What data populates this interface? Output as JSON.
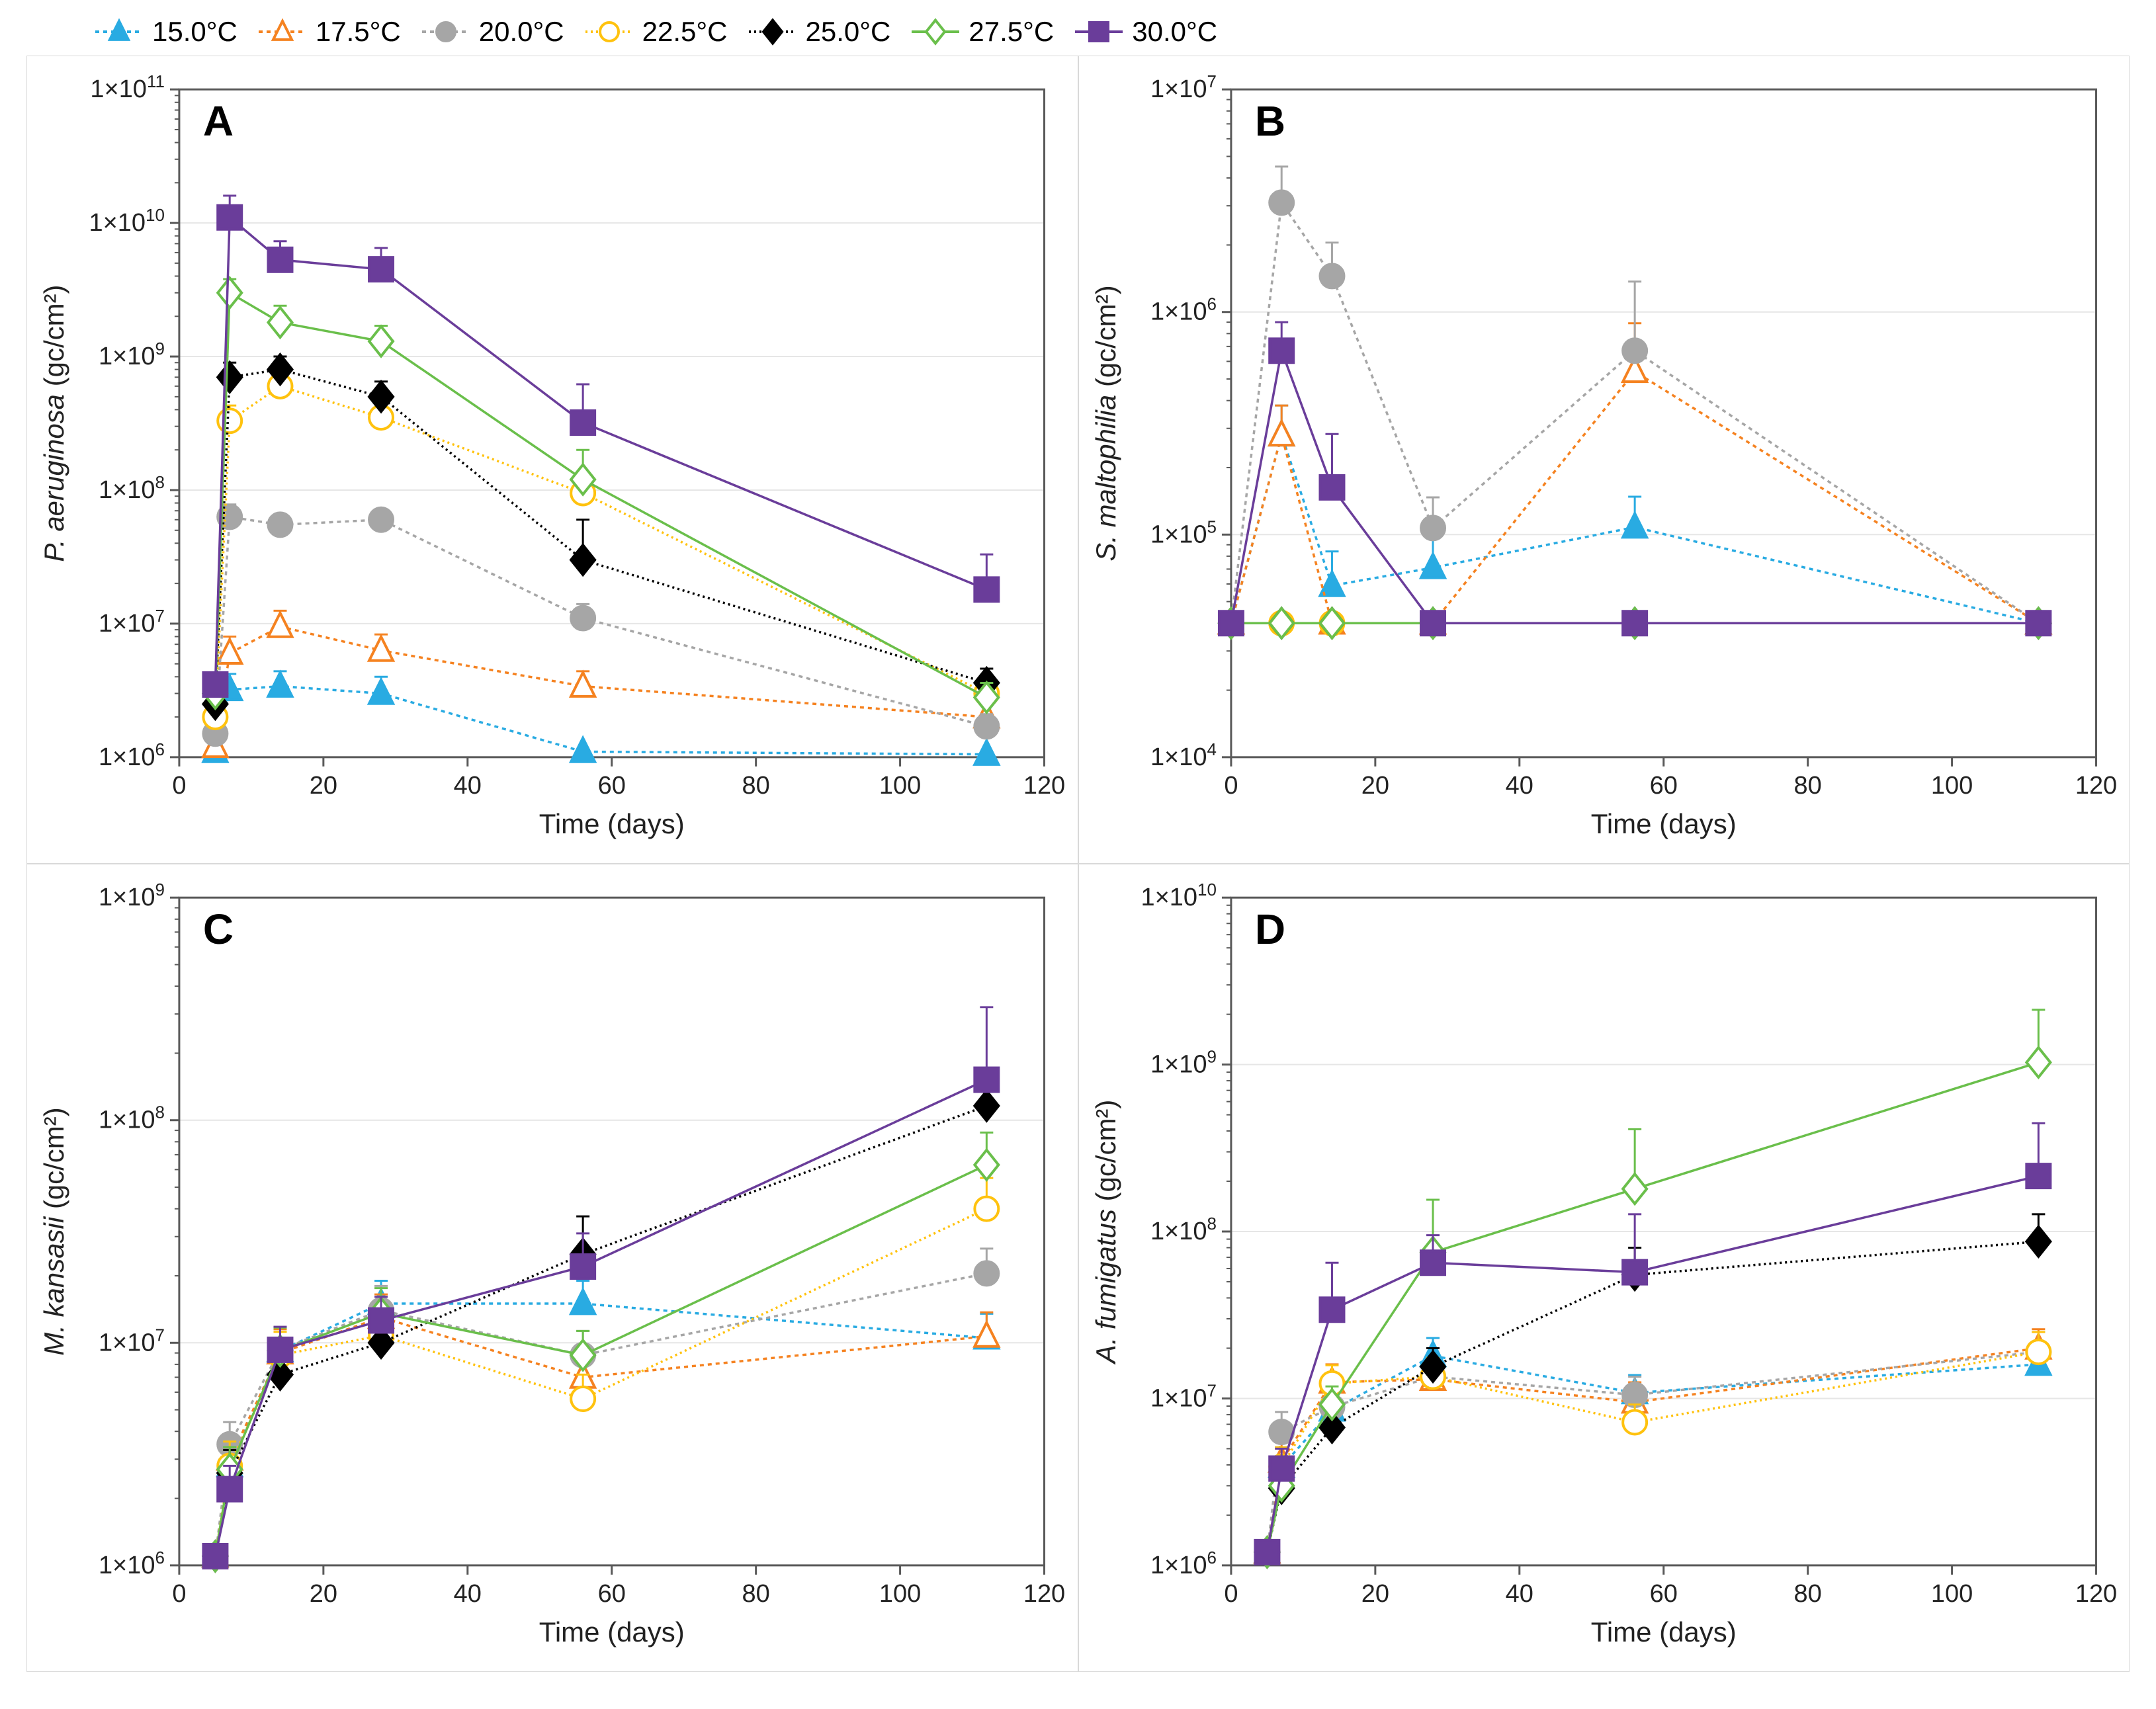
{
  "colors": {
    "axis": "#595959",
    "grid": "#e6e6e6",
    "frame": "#595959",
    "text": "#222222"
  },
  "series_style": {
    "s15": {
      "label": "15.0°C",
      "color": "#29abe2",
      "stroke": "#29abe2",
      "marker": "triangle",
      "fill": "#29abe2",
      "dash": "6 6"
    },
    "s175": {
      "label": "17.5°C",
      "color": "#f58220",
      "stroke": "#f58220",
      "marker": "triangle",
      "fill": "#ffffff",
      "dash": "6 6"
    },
    "s20": {
      "label": "20.0°C",
      "color": "#a6a6a6",
      "stroke": "#a6a6a6",
      "marker": "circle",
      "fill": "#a6a6a6",
      "dash": "6 6"
    },
    "s225": {
      "label": "22.5°C",
      "color": "#ffc20e",
      "stroke": "#ffc20e",
      "marker": "circle",
      "fill": "#ffffff",
      "dash": "3 5"
    },
    "s25": {
      "label": "25.0°C",
      "color": "#000000",
      "stroke": "#000000",
      "marker": "diamond",
      "fill": "#000000",
      "dash": "3 5"
    },
    "s275": {
      "label": "27.5°C",
      "color": "#6abf4b",
      "stroke": "#6abf4b",
      "marker": "diamond",
      "fill": "#ffffff",
      "dash": ""
    },
    "s30": {
      "label": "30.0°C",
      "color": "#6a3d9a",
      "stroke": "#6a3d9a",
      "marker": "square",
      "fill": "#6a3d9a",
      "dash": ""
    }
  },
  "legend_order": [
    "s15",
    "s175",
    "s20",
    "s225",
    "s25",
    "s275",
    "s30"
  ],
  "panels": {
    "A": {
      "letter": "A",
      "ylabel_prefix": "P. aeruginosa",
      "ylabel_suffix": " (gc/cm²)",
      "xlabel": "Time (days)",
      "xlim": [
        0,
        120
      ],
      "xticks": [
        0,
        20,
        40,
        60,
        80,
        100,
        120
      ],
      "ylog": true,
      "ylim": [
        1000000.0,
        100000000000.0
      ],
      "yticks": [
        1000000.0,
        10000000.0,
        100000000.0,
        1000000000.0,
        10000000000.0,
        100000000000.0
      ],
      "series": {
        "s15": {
          "x": [
            5,
            7,
            14,
            28,
            56,
            112
          ],
          "y": [
            1100000.0,
            3200000.0,
            3400000.0,
            3000000.0,
            1100000.0,
            1050000.0
          ],
          "err": [
            0,
            1000000.0,
            1000000.0,
            1000000.0,
            0,
            0
          ]
        },
        "s175": {
          "x": [
            5,
            7,
            14,
            28,
            56,
            112
          ],
          "y": [
            1200000.0,
            6000000.0,
            9500000.0,
            6300000.0,
            3400000.0,
            2000000.0
          ],
          "err": [
            0,
            2000000.0,
            3000000.0,
            2000000.0,
            1000000.0,
            500000.0
          ]
        },
        "s20": {
          "x": [
            5,
            7,
            14,
            28,
            56,
            112
          ],
          "y": [
            1500000.0,
            63000000.0,
            55000000.0,
            60000000.0,
            11000000.0,
            1700000.0
          ],
          "err": [
            0,
            15000000.0,
            10000000.0,
            10000000.0,
            3000000.0,
            400000.0
          ]
        },
        "s225": {
          "x": [
            5,
            7,
            14,
            28,
            56,
            112
          ],
          "y": [
            2000000.0,
            330000000.0,
            600000000.0,
            350000000.0,
            95000000.0,
            3000000.0
          ],
          "err": [
            0,
            100000000.0,
            150000000.0,
            100000000.0,
            30000000.0,
            800000.0
          ]
        },
        "s25": {
          "x": [
            5,
            7,
            14,
            28,
            56,
            112
          ],
          "y": [
            2500000.0,
            700000000.0,
            800000000.0,
            500000000.0,
            30000000.0,
            3600000.0
          ],
          "err": [
            0,
            200000000.0,
            200000000.0,
            150000000.0,
            30000000.0,
            1000000.0
          ]
        },
        "s275": {
          "x": [
            5,
            7,
            14,
            28,
            56,
            112
          ],
          "y": [
            3000000.0,
            3000000000.0,
            1800000000.0,
            1300000000.0,
            120000000.0,
            2800000.0
          ],
          "err": [
            0,
            800000000.0,
            600000000.0,
            400000000.0,
            80000000.0,
            800000.0
          ]
        },
        "s30": {
          "x": [
            5,
            7,
            14,
            28,
            56,
            112
          ],
          "y": [
            3500000.0,
            11000000000.0,
            5300000000.0,
            4500000000.0,
            320000000.0,
            18000000.0
          ],
          "err": [
            0,
            5000000000.0,
            2000000000.0,
            2000000000.0,
            300000000.0,
            15000000.0
          ]
        }
      }
    },
    "B": {
      "letter": "B",
      "ylabel_prefix": "S. maltophilia",
      "ylabel_suffix": " (gc/cm²)",
      "xlabel": "Time (days)",
      "xlim": [
        0,
        120
      ],
      "xticks": [
        0,
        20,
        40,
        60,
        80,
        100,
        120
      ],
      "ylog": true,
      "ylim": [
        10000.0,
        10000000.0
      ],
      "yticks": [
        10000.0,
        100000.0,
        1000000.0,
        10000000.0
      ],
      "series": {
        "s15": {
          "x": [
            0,
            7,
            14,
            28,
            56,
            112
          ],
          "y": [
            40000.0,
            280000.0,
            59000.0,
            71000.0,
            108000.0,
            40000.0
          ],
          "err": [
            0,
            100000.0,
            25000.0,
            25000.0,
            40000.0,
            0
          ]
        },
        "s175": {
          "x": [
            0,
            7,
            14,
            28,
            56,
            112
          ],
          "y": [
            40000.0,
            280000.0,
            40000.0,
            40000.0,
            540000.0,
            40000.0
          ],
          "err": [
            0,
            100000.0,
            0,
            0,
            350000.0,
            0
          ]
        },
        "s20": {
          "x": [
            0,
            7,
            14,
            28,
            56,
            112
          ],
          "y": [
            40000.0,
            3100000.0,
            1450000.0,
            107000.0,
            670000.0,
            40000.0
          ],
          "err": [
            0,
            1400000.0,
            600000.0,
            40000.0,
            700000.0,
            0
          ]
        },
        "s225": {
          "x": [
            0,
            7,
            14,
            28,
            56,
            112
          ],
          "y": [
            40000.0,
            40000.0,
            40000.0,
            40000.0,
            40000.0,
            40000.0
          ],
          "err": [
            0,
            0,
            0,
            0,
            0,
            0
          ]
        },
        "s25": {
          "x": [
            0,
            7,
            14,
            28,
            56,
            112
          ],
          "y": [
            40000.0,
            40000.0,
            40000.0,
            40000.0,
            40000.0,
            40000.0
          ],
          "err": [
            0,
            0,
            0,
            0,
            0,
            0
          ]
        },
        "s275": {
          "x": [
            0,
            7,
            14,
            28,
            56,
            112
          ],
          "y": [
            40000.0,
            40000.0,
            40000.0,
            40000.0,
            40000.0,
            40000.0
          ],
          "err": [
            0,
            0,
            0,
            0,
            0,
            0
          ]
        },
        "s30": {
          "x": [
            0,
            7,
            14,
            28,
            56,
            112
          ],
          "y": [
            40000.0,
            670000.0,
            163000.0,
            40000.0,
            40000.0,
            40000.0
          ],
          "err": [
            0,
            230000.0,
            120000.0,
            0,
            0,
            0
          ]
        }
      }
    },
    "C": {
      "letter": "C",
      "ylabel_prefix": "M. kansasii",
      "ylabel_suffix": " (gc/cm²)",
      "xlabel": "Time (days)",
      "xlim": [
        0,
        120
      ],
      "xticks": [
        0,
        20,
        40,
        60,
        80,
        100,
        120
      ],
      "ylog": true,
      "ylim": [
        1000000.0,
        1000000000.0
      ],
      "yticks": [
        1000000.0,
        10000000.0,
        100000000.0,
        1000000000.0
      ],
      "series": {
        "s15": {
          "x": [
            5,
            7,
            14,
            28,
            56,
            112
          ],
          "y": [
            1100000.0,
            2800000.0,
            9200000.0,
            15000000.0,
            15000000.0,
            10500000.0
          ],
          "err": [
            0,
            800000.0,
            2500000.0,
            4000000.0,
            4000000.0,
            3000000.0
          ]
        },
        "s175": {
          "x": [
            5,
            7,
            14,
            28,
            56,
            112
          ],
          "y": [
            1100000.0,
            3000000.0,
            9000000.0,
            13000000.0,
            7000000.0,
            10700000.0
          ],
          "err": [
            0,
            800000.0,
            2500000.0,
            3500000.0,
            2000000.0,
            3000000.0
          ]
        },
        "s20": {
          "x": [
            5,
            7,
            14,
            28,
            56,
            112
          ],
          "y": [
            1100000.0,
            3500000.0,
            9300000.0,
            14000000.0,
            8800000.0,
            20500000.0
          ],
          "err": [
            0,
            900000.0,
            2500000.0,
            4000000.0,
            2500000.0,
            6000000.0
          ]
        },
        "s225": {
          "x": [
            5,
            7,
            14,
            28,
            56,
            112
          ],
          "y": [
            1100000.0,
            2800000.0,
            8800000.0,
            10800000.0,
            5600000.0,
            40000000.0
          ],
          "err": [
            0,
            800000.0,
            2400000.0,
            3000000.0,
            1600000.0,
            15000000.0
          ]
        },
        "s25": {
          "x": [
            5,
            7,
            14,
            28,
            56,
            112
          ],
          "y": [
            1100000.0,
            2600000.0,
            7200000.0,
            10000000.0,
            25000000.0,
            116000000.0
          ],
          "err": [
            0,
            700000.0,
            2000000.0,
            3000000.0,
            12000000.0,
            55000000.0
          ]
        },
        "s275": {
          "x": [
            5,
            7,
            14,
            28,
            56,
            112
          ],
          "y": [
            1100000.0,
            2700000.0,
            9200000.0,
            13600000.0,
            8800000.0,
            63000000.0
          ],
          "err": [
            0,
            700000.0,
            2500000.0,
            4000000.0,
            2500000.0,
            25000000.0
          ]
        },
        "s30": {
          "x": [
            5,
            7,
            14,
            28,
            56,
            112
          ],
          "y": [
            1100000.0,
            2200000.0,
            9300000.0,
            12600000.0,
            22000000.0,
            152000000.0
          ],
          "err": [
            0,
            600000.0,
            2500000.0,
            3500000.0,
            9000000.0,
            170000000.0
          ]
        }
      }
    },
    "D": {
      "letter": "D",
      "ylabel_prefix": "A. fumigatus",
      "ylabel_suffix": " (gc/cm²)",
      "xlabel": "Time (days)",
      "xlim": [
        0,
        120
      ],
      "xticks": [
        0,
        20,
        40,
        60,
        80,
        100,
        120
      ],
      "ylog": true,
      "ylim": [
        1000000.0,
        10000000000.0
      ],
      "yticks": [
        1000000.0,
        10000000.0,
        100000000.0,
        1000000000.0,
        10000000000.0
      ],
      "series": {
        "s15": {
          "x": [
            5,
            7,
            14,
            28,
            56,
            112
          ],
          "y": [
            1200000.0,
            3900000.0,
            8500000.0,
            18000000.0,
            10800000.0,
            16000000.0
          ],
          "err": [
            0,
            1200000.0,
            2500000.0,
            5000000.0,
            3000000.0,
            5000000.0
          ]
        },
        "s175": {
          "x": [
            5,
            7,
            14,
            28,
            56,
            112
          ],
          "y": [
            1200000.0,
            4200000.0,
            12500000.0,
            13000000.0,
            9500000.0,
            20000000.0
          ],
          "err": [
            0,
            1300000.0,
            3500000.0,
            4000000.0,
            3000000.0,
            6000000.0
          ]
        },
        "s20": {
          "x": [
            5,
            7,
            14,
            28,
            56,
            112
          ],
          "y": [
            1200000.0,
            6300000.0,
            8900000.0,
            13500000.0,
            10500000.0,
            19000000.0
          ],
          "err": [
            0,
            2000000.0,
            2500000.0,
            4000000.0,
            3000000.0,
            6000000.0
          ]
        },
        "s225": {
          "x": [
            5,
            7,
            14,
            28,
            56,
            112
          ],
          "y": [
            1200000.0,
            3900000.0,
            12300000.0,
            13500000.0,
            7200000.0,
            19000000.0
          ],
          "err": [
            0,
            1200000.0,
            3500000.0,
            4000000.0,
            2000000.0,
            6000000.0
          ]
        },
        "s25": {
          "x": [
            5,
            7,
            14,
            28,
            56,
            112
          ],
          "y": [
            1200000.0,
            2900000.0,
            6700000.0,
            15500000.0,
            55000000.0,
            87000000.0
          ],
          "err": [
            0,
            900000.0,
            2000000.0,
            4500000.0,
            25000000.0,
            40000000.0
          ]
        },
        "s275": {
          "x": [
            5,
            7,
            14,
            28,
            56,
            112
          ],
          "y": [
            1200000.0,
            3000000.0,
            9200000.0,
            75000000.0,
            180000000.0,
            1030000000.0
          ],
          "err": [
            0,
            900000.0,
            2600000.0,
            80000000.0,
            230000000.0,
            1100000000.0
          ]
        },
        "s30": {
          "x": [
            5,
            7,
            14,
            28,
            56,
            112
          ],
          "y": [
            1200000.0,
            3800000.0,
            34000000.0,
            65000000.0,
            57000000.0,
            215000000.0
          ],
          "err": [
            0,
            1200000.0,
            31000000.0,
            30000000.0,
            70000000.0,
            230000000.0
          ]
        }
      }
    }
  },
  "layout": {
    "marker_size": 18,
    "line_width": 3.5,
    "tick_fontsize": 38,
    "label_fontsize": 42,
    "panel_letter_fontsize": 64,
    "frame_width": 3
  }
}
